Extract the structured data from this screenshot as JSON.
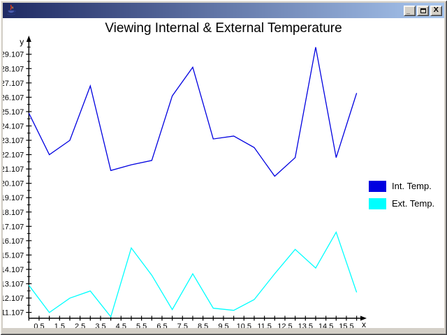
{
  "window": {
    "titlebar": {
      "title": "",
      "minimize_glyph": "_",
      "close_glyph": "X"
    }
  },
  "chart_data": {
    "type": "line",
    "title": "Viewing Internal & External Temperature",
    "xlabel": "x",
    "ylabel": "y",
    "x": [
      0,
      1,
      2,
      3,
      4,
      5,
      6,
      7,
      8,
      9,
      10,
      11,
      12,
      13,
      14,
      15,
      16
    ],
    "series": [
      {
        "name": "Int. Temp.",
        "color": "#0000e0",
        "values": [
          25.0,
          22.1,
          23.1,
          26.9,
          21.0,
          21.4,
          21.7,
          26.2,
          28.2,
          23.2,
          23.4,
          22.6,
          20.6,
          21.9,
          29.6,
          21.9,
          26.4
        ]
      },
      {
        "name": "Ext. Temp.",
        "color": "#00ffff",
        "values": [
          13.0,
          11.1,
          12.1,
          12.6,
          10.8,
          15.6,
          13.7,
          11.3,
          13.8,
          11.4,
          11.25,
          12.0,
          13.8,
          15.5,
          14.2,
          16.7,
          12.5
        ]
      }
    ],
    "x_tick_labels": [
      "0.5",
      "1.5",
      "2.5",
      "3.5",
      "4.5",
      "5.5",
      "6.5",
      "7.5",
      "8.5",
      "9.5",
      "10.5",
      "11.5",
      "12.5",
      "13.5",
      "14.5",
      "15.5"
    ],
    "y_tick_labels": [
      "11.107",
      "12.107",
      "13.107",
      "14.107",
      "15.107",
      "16.107",
      "17.107",
      "18.107",
      "19.107",
      "20.107",
      "21.107",
      "22.107",
      "23.107",
      "24.107",
      "25.107",
      "26.107",
      "27.107",
      "28.107",
      "29.107"
    ],
    "xlim": [
      0,
      16.4
    ],
    "ylim": [
      10.6,
      30.1
    ],
    "grid": false,
    "legend_position": "right"
  }
}
